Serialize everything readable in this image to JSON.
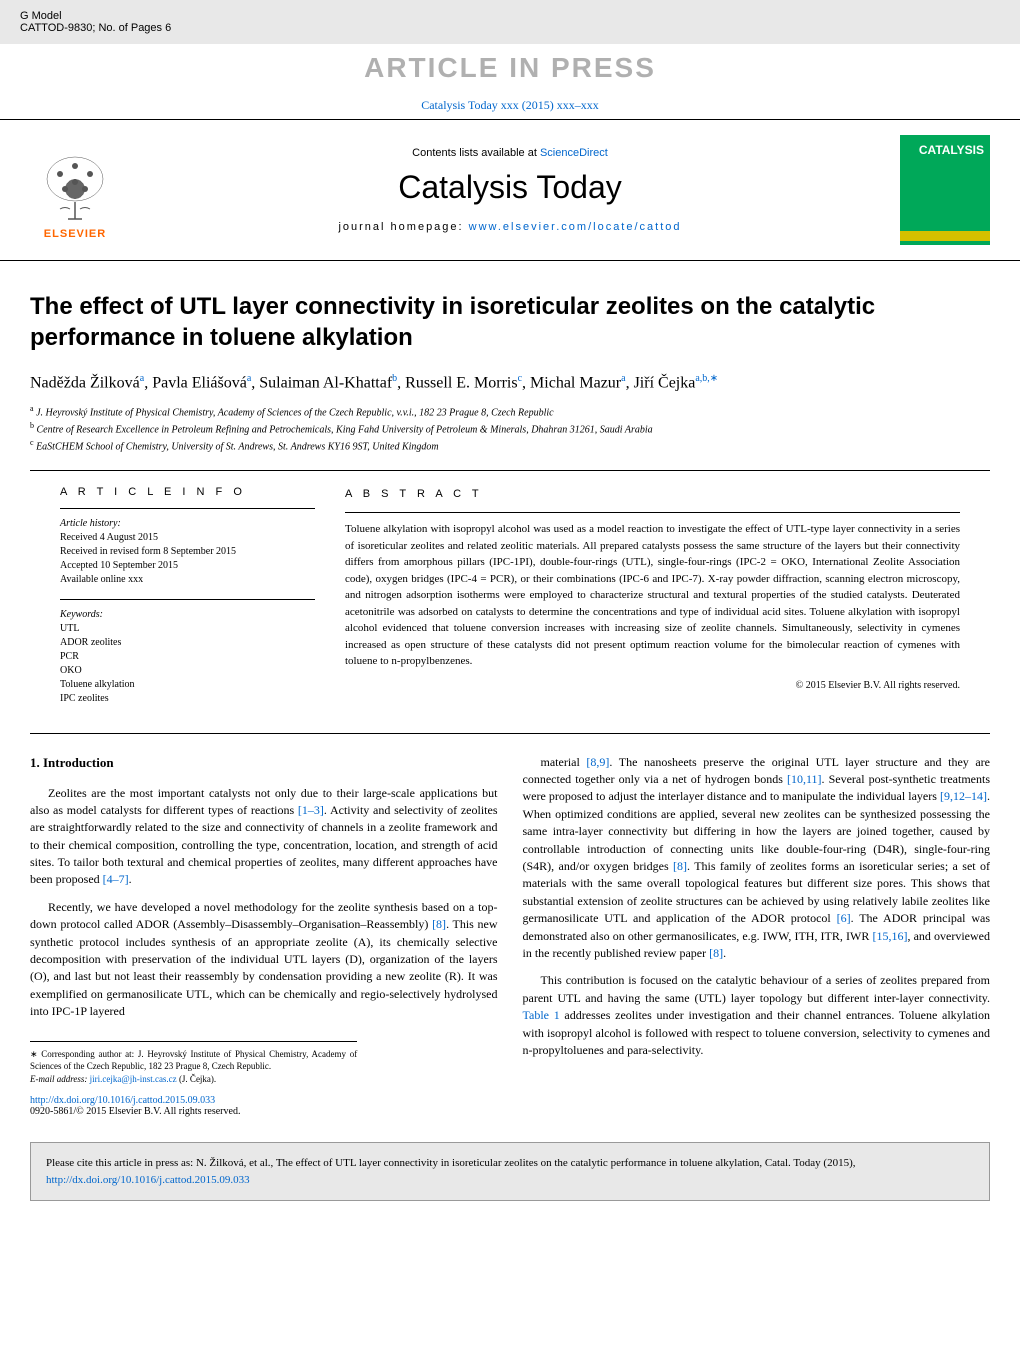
{
  "header": {
    "gmodel": "G Model",
    "code": "CATTOD-9830;  No. of Pages 6",
    "pressLabel": "ARTICLE IN PRESS",
    "citationLine": "Catalysis Today xxx (2015) xxx–xxx",
    "contentsLine": "Contents lists available at ",
    "scienceDirect": "ScienceDirect",
    "journalTitle": "Catalysis Today",
    "homepageLabel": "journal homepage: ",
    "homepageUrl": "www.elsevier.com/locate/cattod",
    "elsevierText": "ELSEVIER",
    "coverText": "CATALYSIS"
  },
  "article": {
    "title": "The effect of UTL layer connectivity in isoreticular zeolites on the catalytic performance in toluene alkylation",
    "authors": [
      {
        "name": "Naděžda Žilková",
        "sup": "a"
      },
      {
        "name": "Pavla Eliášová",
        "sup": "a"
      },
      {
        "name": "Sulaiman Al-Khattaf",
        "sup": "b"
      },
      {
        "name": "Russell E. Morris",
        "sup": "c"
      },
      {
        "name": "Michal Mazur",
        "sup": "a"
      },
      {
        "name": "Jiří Čejka",
        "sup": "a,b,∗"
      }
    ],
    "affiliations": [
      {
        "sup": "a",
        "text": "J. Heyrovský Institute of Physical Chemistry, Academy of Sciences of the Czech Republic, v.v.i., 182 23 Prague 8, Czech Republic"
      },
      {
        "sup": "b",
        "text": "Centre of Research Excellence in Petroleum Refining and Petrochemicals, King Fahd University of Petroleum & Minerals, Dhahran 31261, Saudi Arabia"
      },
      {
        "sup": "c",
        "text": "EaStCHEM School of Chemistry, University of St. Andrews, St. Andrews KY16 9ST, United Kingdom"
      }
    ]
  },
  "info": {
    "heading": "A R T I C L E    I N F O",
    "historyLabel": "Article history:",
    "received": "Received 4 August 2015",
    "revised": "Received in revised form 8 September 2015",
    "accepted": "Accepted 10 September 2015",
    "online": "Available online xxx",
    "keywordsLabel": "Keywords:",
    "keywords": [
      "UTL",
      "ADOR zeolites",
      "PCR",
      "OKO",
      "Toluene alkylation",
      "IPC zeolites"
    ]
  },
  "abstract": {
    "heading": "A B S T R A C T",
    "text": "Toluene alkylation with isopropyl alcohol was used as a model reaction to investigate the effect of UTL-type layer connectivity in a series of isoreticular zeolites and related zeolitic materials. All prepared catalysts possess the same structure of the layers but their connectivity differs from amorphous pillars (IPC-1PI), double-four-rings (UTL), single-four-rings (IPC-2 = OKO, International Zeolite Association code), oxygen bridges (IPC-4 = PCR), or their combinations (IPC-6 and IPC-7). X-ray powder diffraction, scanning electron microscopy, and nitrogen adsorption isotherms were employed to characterize structural and textural properties of the studied catalysts. Deuterated acetonitrile was adsorbed on catalysts to determine the concentrations and type of individual acid sites. Toluene alkylation with isopropyl alcohol evidenced that toluene conversion increases with increasing size of zeolite channels. Simultaneously, selectivity in cymenes increased as open structure of these catalysts did not present optimum reaction volume for the bimolecular reaction of cymenes with toluene to n-propylbenzenes.",
    "copyright": "© 2015 Elsevier B.V. All rights reserved."
  },
  "body": {
    "introHeading": "1.  Introduction",
    "leftParagraphs": [
      {
        "text": "Zeolites are the most important catalysts not only due to their large-scale applications but also as model catalysts for different types of reactions ",
        "ref": "[1–3]",
        "after": ". Activity and selectivity of zeolites are straightforwardly related to the size and connectivity of channels in a zeolite framework and to their chemical composition, controlling the type, concentration, location, and strength of acid sites. To tailor both textural and chemical properties of zeolites, many different approaches have been proposed ",
        "ref2": "[4–7]",
        "after2": "."
      },
      {
        "text": "Recently, we have developed a novel methodology for the zeolite synthesis based on a top-down protocol called ADOR (Assembly–Disassembly–Organisation–Reassembly) ",
        "ref": "[8]",
        "after": ". This new synthetic protocol includes synthesis of an appropriate zeolite (A), its chemically selective decomposition with preservation of the individual UTL layers (D), organization of the layers (O), and last but not least their reassembly by condensation providing a new zeolite (R). It was exemplified on germanosilicate UTL, which can be chemically and regio-selectively hydrolysed into IPC-1P layered"
      }
    ],
    "rightParagraphs": [
      {
        "pre": "material ",
        "ref1": "[8,9]",
        "mid1": ". The nanosheets preserve the original UTL layer structure and they are connected together only via a net of hydrogen bonds ",
        "ref2": "[10,11]",
        "mid2": ". Several post-synthetic treatments were proposed to adjust the interlayer distance and to manipulate the individual layers ",
        "ref3": "[9,12–14]",
        "mid3": ". When optimized conditions are applied, several new zeolites can be synthesized possessing the same intra-layer connectivity but differing in how the layers are joined together, caused by controllable introduction of connecting units like double-four-ring (D4R), single-four-ring (S4R), and/or oxygen bridges ",
        "ref4": "[8]",
        "mid4": ". This family of zeolites forms an isoreticular series; a set of materials with the same overall topological features but different size pores. This shows that substantial extension of zeolite structures can be achieved by using relatively labile zeolites like germanosilicate UTL and application of the ADOR protocol ",
        "ref5": "[6]",
        "mid5": ". The ADOR principal was demonstrated also on other germanosilicates, e.g. IWW, ITH, ITR, IWR ",
        "ref6": "[15,16]",
        "mid6": ", and overviewed in the recently published review paper ",
        "ref7": "[8]",
        "mid7": "."
      },
      {
        "text": "This contribution is focused on the catalytic behaviour of a series of zeolites prepared from parent UTL and having the same (UTL) layer topology but different inter-layer connectivity. ",
        "tableRef": "Table 1",
        "after": " addresses zeolites under investigation and their channel entrances. Toluene alkylation with isopropyl alcohol is followed with respect to toluene conversion, selectivity to cymenes and n-propyltoluenes and para-selectivity."
      }
    ]
  },
  "footnote": {
    "corresponding": "∗ Corresponding author at: J. Heyrovský Institute of Physical Chemistry, Academy of Sciences of the Czech Republic, 182 23 Prague 8, Czech Republic.",
    "emailLabel": "E-mail address: ",
    "email": "jiri.cejka@jh-inst.cas.cz",
    "emailAfter": " (J. Čejka)."
  },
  "doi": {
    "url": "http://dx.doi.org/10.1016/j.cattod.2015.09.033",
    "issn": "0920-5861/© 2015 Elsevier B.V. All rights reserved."
  },
  "citeBox": {
    "text": "Please cite this article in press as: N. Žilková, et al., The effect of UTL layer connectivity in isoreticular zeolites on the catalytic performance in toluene alkylation, Catal. Today (2015), ",
    "url": "http://dx.doi.org/10.1016/j.cattod.2015.09.033"
  },
  "colors": {
    "linkColor": "#0066cc",
    "headerGray": "#e8e8e8",
    "pressGray": "#b0b0b0",
    "elsevierOrange": "#ff6600",
    "coverGreen": "#00a859",
    "coverYellow": "#d4c000"
  }
}
